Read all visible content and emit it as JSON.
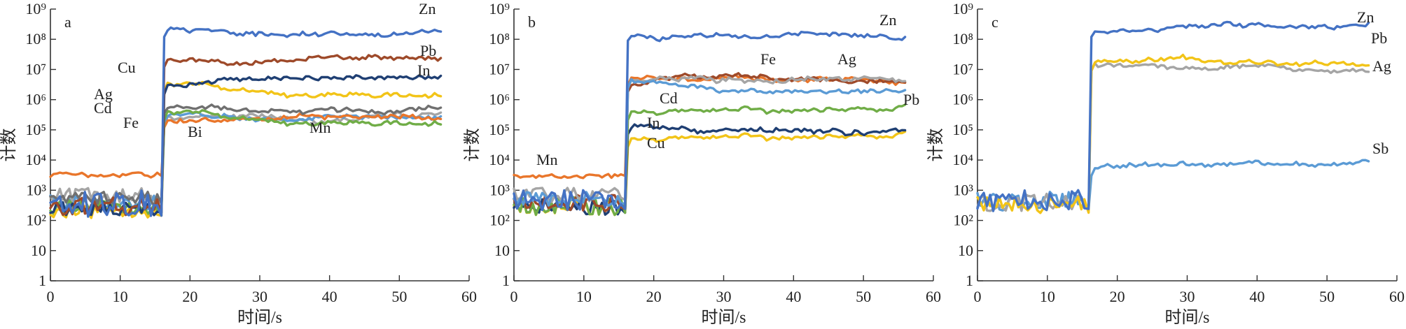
{
  "chart_data": [
    {
      "type": "line",
      "panel_label": "a",
      "xlabel": "时间/s",
      "ylabel": "计数",
      "xlim": [
        0,
        60
      ],
      "ylim": [
        1,
        1000000000
      ],
      "y_scale": "log",
      "x_ticks": [
        "0",
        "10",
        "20",
        "30",
        "40",
        "50",
        "60"
      ],
      "y_ticks": [
        "1",
        "10",
        "10²",
        "10³",
        "10⁴",
        "10⁵",
        "10⁶",
        "10⁷",
        "10⁸",
        "10⁹"
      ],
      "series": [
        {
          "name": "Zn",
          "color": "#4472c4",
          "bg": [
            120,
            1000
          ],
          "top": 200000000
        },
        {
          "name": "Pb",
          "color": "#9e4a2a",
          "bg": [
            150,
            600
          ],
          "top": 20000000
        },
        {
          "name": "In",
          "color": "#1f3f73",
          "bg": [
            150,
            400
          ],
          "top": 2500000
        },
        {
          "name": "Cu",
          "color": "#f2c418",
          "bg": [
            120,
            300
          ],
          "top": 3000000
        },
        {
          "name": "Ag",
          "color": "#707070",
          "bg": [
            300,
            900
          ],
          "top": 600000
        },
        {
          "name": "Cd",
          "color": "#70ad47",
          "bg": [
            150,
            500
          ],
          "top": 350000
        },
        {
          "name": "Fe",
          "color": "#e9762b",
          "bg": [
            2500,
            4000
          ],
          "top": 200000
        },
        {
          "name": "Bi",
          "color": "#5b9bd5",
          "bg": [
            200,
            700
          ],
          "top": 250000
        },
        {
          "name": "Mn",
          "color": "#a5a5a5",
          "bg": [
            400,
            1200
          ],
          "top": 250000
        }
      ]
    },
    {
      "type": "line",
      "panel_label": "b",
      "xlabel": "时间/s",
      "ylabel": "计数",
      "xlim": [
        0,
        60
      ],
      "ylim": [
        1,
        1000000000
      ],
      "y_scale": "log",
      "x_ticks": [
        "0",
        "10",
        "20",
        "30",
        "40",
        "50",
        "60"
      ],
      "y_ticks": [
        "1",
        "10",
        "10²",
        "10³",
        "10⁴",
        "10⁵",
        "10⁶",
        "10⁷",
        "10⁸",
        "10⁹"
      ],
      "series": [
        {
          "name": "Zn",
          "color": "#4472c4",
          "bg": [
            200,
            1000
          ],
          "top": 150000000
        },
        {
          "name": "Fe",
          "color": "#5b9bd5",
          "bg": [
            300,
            900
          ],
          "top": 4000000
        },
        {
          "name": "Ag",
          "color": "#a5a5a5",
          "bg": [
            400,
            1200
          ],
          "top": 4000000
        },
        {
          "name": "Pb",
          "color": "#9e4a2a",
          "bg": [
            200,
            800
          ],
          "top": 3000000
        },
        {
          "name": "Cd",
          "color": "#70ad47",
          "bg": [
            150,
            600
          ],
          "top": 350000
        },
        {
          "name": "In",
          "color": "#1f3f73",
          "bg": [
            150,
            500
          ],
          "top": 120000
        },
        {
          "name": "Cu",
          "color": "#f2c418",
          "bg": [
            150,
            500
          ],
          "top": 45000
        },
        {
          "name": "Mn",
          "color": "#e9762b",
          "bg": [
            2500,
            3500
          ],
          "top": 5000000
        }
      ]
    },
    {
      "type": "line",
      "panel_label": "c",
      "xlabel": "时间/s",
      "ylabel": "计数",
      "xlim": [
        0,
        60
      ],
      "ylim": [
        1,
        1000000000
      ],
      "y_scale": "log",
      "x_ticks": [
        "0",
        "10",
        "20",
        "30",
        "40",
        "50",
        "60"
      ],
      "y_ticks": [
        "1",
        "10",
        "10²",
        "10³",
        "10⁴",
        "10⁵",
        "10⁶",
        "10⁷",
        "10⁸",
        "10⁹"
      ],
      "series": [
        {
          "name": "Zn",
          "color": "#4472c4",
          "bg": [
            200,
            1000
          ],
          "top": 200000000
        },
        {
          "name": "Pb",
          "color": "#f2c418",
          "bg": [
            150,
            600
          ],
          "top": 15000000
        },
        {
          "name": "Ag",
          "color": "#a5a5a5",
          "bg": [
            200,
            800
          ],
          "top": 15000000
        },
        {
          "name": "Sb",
          "color": "#5b9bd5",
          "bg": [
            200,
            900
          ],
          "top": 5000
        }
      ]
    }
  ]
}
